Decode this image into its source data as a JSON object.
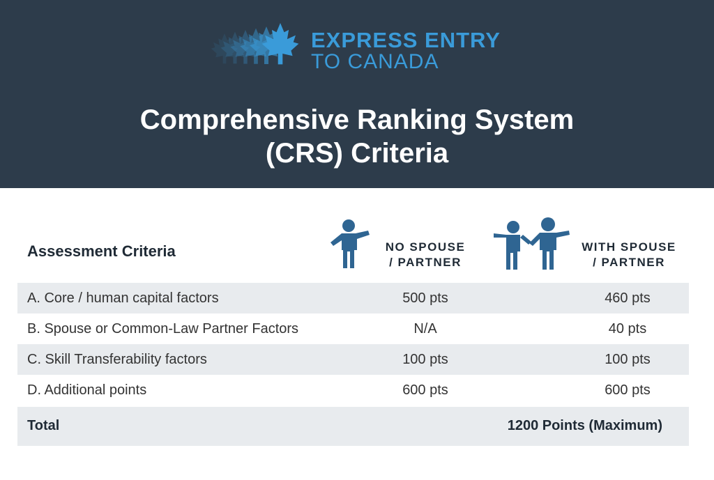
{
  "header": {
    "logo": {
      "line1": "EXPRESS ENTRY",
      "line2": "TO CANADA",
      "icon": "maple-leaf-icon",
      "accent_color": "#3a9bd9"
    },
    "title_line1": "Comprehensive Ranking System",
    "title_line2": "(CRS) Criteria",
    "background_color": "#2d3c4b"
  },
  "table": {
    "criteria_header": "Assessment Criteria",
    "col_no_spouse": {
      "line1": "NO SPOUSE",
      "line2": "/ PARTNER",
      "icon": "single-person-icon"
    },
    "col_with_spouse": {
      "line1": "WITH SPOUSE",
      "line2": "/ PARTNER",
      "icon": "couple-icon"
    },
    "icon_color": "#2f6592",
    "rows": [
      {
        "label": "A. Core / human capital factors",
        "no_spouse": "500 pts",
        "with_spouse": "460 pts"
      },
      {
        "label": "B. Spouse or Common-Law Partner Factors",
        "no_spouse": "N/A",
        "with_spouse": "40 pts"
      },
      {
        "label": "C. Skill Transferability factors",
        "no_spouse": "100 pts",
        "with_spouse": "100 pts"
      },
      {
        "label": "D. Additional points",
        "no_spouse": "600 pts",
        "with_spouse": "600 pts"
      }
    ],
    "total_label": "Total",
    "total_value": "1200 Points (Maximum)"
  }
}
